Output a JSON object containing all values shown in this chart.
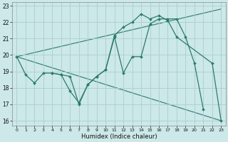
{
  "xlabel": "Humidex (Indice chaleur)",
  "bg_color": "#cce8e8",
  "line_color": "#2d7b6f",
  "grid_color": "#aacece",
  "xlim": [
    -0.5,
    23.5
  ],
  "ylim": [
    15.7,
    23.2
  ],
  "yticks": [
    16,
    17,
    18,
    19,
    20,
    21,
    22,
    23
  ],
  "xticks": [
    0,
    1,
    2,
    3,
    4,
    5,
    6,
    7,
    8,
    9,
    10,
    11,
    12,
    13,
    14,
    15,
    16,
    17,
    18,
    19,
    20,
    21,
    22,
    23
  ],
  "line1_x": [
    0,
    1,
    2,
    3,
    4,
    5,
    6,
    7,
    8,
    9,
    10,
    11,
    12,
    13,
    14,
    15,
    16,
    17,
    18,
    19,
    20,
    21
  ],
  "line1_y": [
    19.9,
    18.8,
    18.3,
    18.9,
    18.9,
    18.8,
    17.8,
    17.1,
    18.2,
    18.7,
    19.1,
    21.1,
    18.9,
    19.9,
    19.9,
    21.9,
    22.2,
    22.2,
    22.2,
    21.1,
    19.5,
    16.7
  ],
  "line2_x": [
    4,
    5,
    6,
    7,
    8,
    9,
    10,
    11,
    12,
    13,
    14,
    15,
    16,
    17,
    18,
    22,
    23
  ],
  "line2_y": [
    18.9,
    18.8,
    18.7,
    17.0,
    18.2,
    18.7,
    19.1,
    21.2,
    21.7,
    22.0,
    22.5,
    22.2,
    22.4,
    22.1,
    21.1,
    19.5,
    16.0
  ],
  "line3_x": [
    0,
    23
  ],
  "line3_y": [
    19.9,
    22.8
  ],
  "line4_x": [
    0,
    23
  ],
  "line4_y": [
    19.9,
    16.0
  ]
}
